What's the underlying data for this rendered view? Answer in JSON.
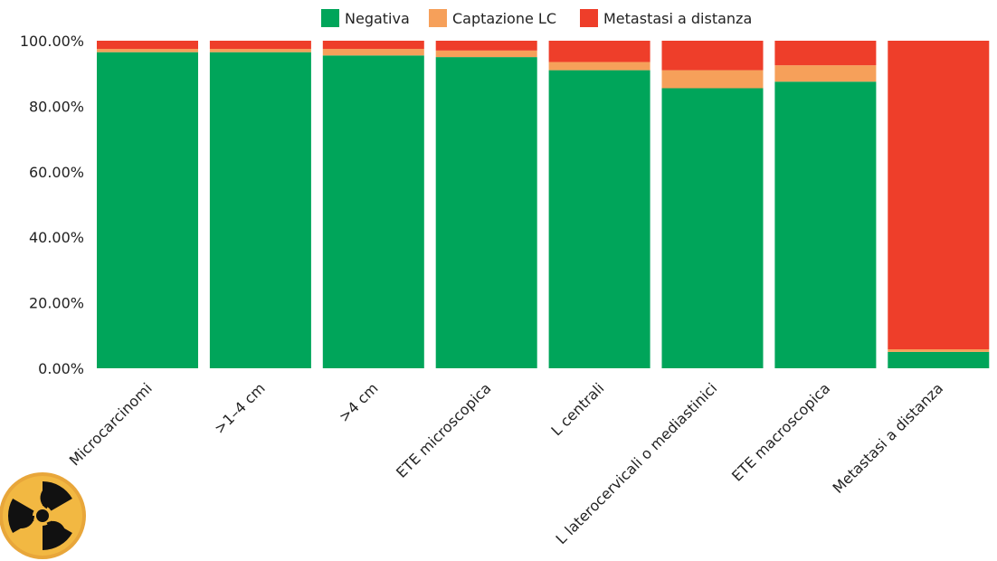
{
  "chart_data": {
    "type": "bar",
    "stacked": true,
    "categories": [
      "Microcarcinomi",
      ">1–4 cm",
      ">4 cm",
      "ETE microscopica",
      "L centrali",
      "L laterocervicali o mediastinici",
      "ETE macroscopica",
      "Metastasi a distanza"
    ],
    "series": [
      {
        "name": "Negativa",
        "color": "#00a55a",
        "values": [
          96.5,
          96.5,
          95.5,
          95.0,
          91.0,
          85.5,
          87.5,
          5.0
        ]
      },
      {
        "name": "Captazione LC",
        "color": "#f6a05a",
        "values": [
          1.0,
          1.0,
          2.0,
          2.0,
          2.5,
          5.5,
          5.0,
          0.8
        ]
      },
      {
        "name": "Metastasi a distanza",
        "color": "#ee3e2a",
        "values": [
          2.5,
          2.5,
          2.5,
          3.0,
          6.5,
          9.0,
          7.5,
          94.2
        ]
      }
    ],
    "y_ticks": [
      "0.00%",
      "20.00%",
      "40.00%",
      "60.00%",
      "80.00%",
      "100.00%"
    ],
    "ylim": [
      0,
      100
    ],
    "title": "",
    "xlabel": "",
    "ylabel": "",
    "legend_position": "top-center"
  },
  "decor": {
    "logo": "radiation-symbol-icon"
  }
}
